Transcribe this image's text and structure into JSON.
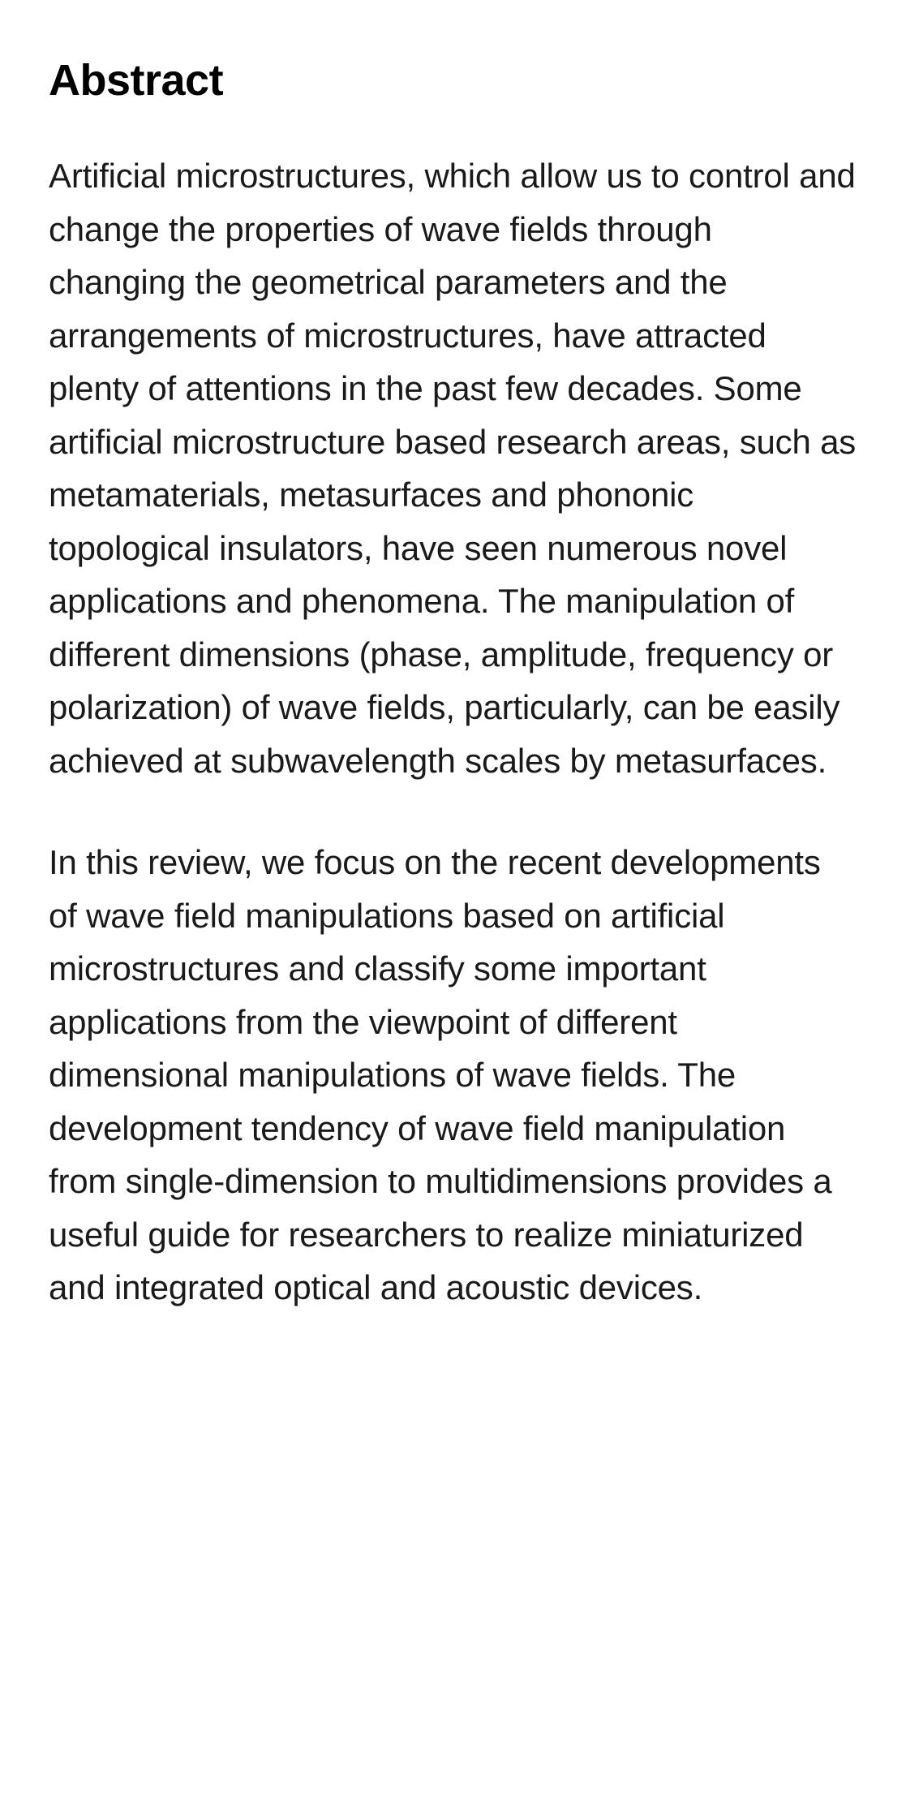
{
  "abstract": {
    "heading": "Abstract",
    "paragraph1": "Artificial microstructures, which allow us to control and change the properties of wave fields through changing the geometrical parameters and the arrangements of microstructures, have attracted plenty of attentions in the past few decades. Some artificial microstructure based research areas, such as metamaterials, metasurfaces and phononic topological insulators, have seen numerous novel applications and phenomena. The manipulation of different dimensions (phase, amplitude, frequency or polarization) of wave fields, particularly, can be easily achieved at subwavelength scales by metasurfaces.",
    "paragraph2": "In this review, we focus on the recent developments of wave field manipulations based on artificial microstructures and classify some important applications from the viewpoint of different dimensional manipulations of wave fields. The development tendency of wave field manipulation from single-dimension to multidimensions provides a useful guide for researchers to realize miniaturized and integrated optical and acoustic devices."
  },
  "styles": {
    "background_color": "#ffffff",
    "heading_color": "#000000",
    "heading_fontsize": 54,
    "heading_fontweight": 700,
    "body_color": "#1a1a1a",
    "body_fontsize": 42,
    "body_lineheight": 1.56,
    "paragraph_spacing": 60
  }
}
